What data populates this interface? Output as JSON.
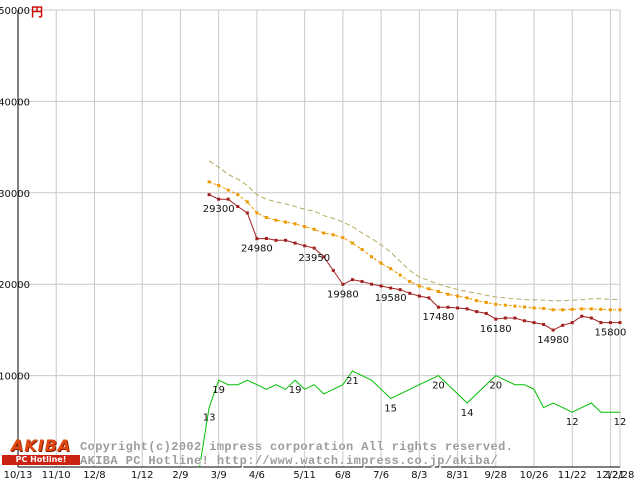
{
  "page": {
    "yen_unit": "円",
    "copyright_line1": "Copyright(c)2002 impress corporation All rights reserved.",
    "copyright_line2": "AKIBA PC Hotline! http://www.watch.impress.co.jp/akiba/",
    "logo": {
      "title": "AKIBA",
      "subtitle": "PC Hotline!"
    }
  },
  "chart_data": {
    "type": "line",
    "title": "",
    "y_unit": "円",
    "ylim": [
      0,
      50000
    ],
    "grid": true,
    "grid_color": "#c9c9c9",
    "axis_color": "#000000",
    "x_week_max": 63,
    "y_ticks": [
      {
        "label": "10000",
        "value": 10000
      },
      {
        "label": "20000",
        "value": 20000
      },
      {
        "label": "30000",
        "value": 30000
      },
      {
        "label": "40000",
        "value": 40000
      },
      {
        "label": "50000",
        "value": 50000
      }
    ],
    "x_ticks": [
      {
        "label": "10/13",
        "week": 0
      },
      {
        "label": "11/10",
        "week": 4
      },
      {
        "label": "12/8",
        "week": 8
      },
      {
        "label": "1/12",
        "week": 13
      },
      {
        "label": "2/9",
        "week": 17
      },
      {
        "label": "3/9",
        "week": 21
      },
      {
        "label": "4/6",
        "week": 25
      },
      {
        "label": "5/11",
        "week": 30
      },
      {
        "label": "6/8",
        "week": 34
      },
      {
        "label": "7/6",
        "week": 38
      },
      {
        "label": "8/3",
        "week": 42
      },
      {
        "label": "8/31",
        "week": 46
      },
      {
        "label": "9/28",
        "week": 50
      },
      {
        "label": "10/26",
        "week": 54
      },
      {
        "label": "11/22",
        "week": 58
      },
      {
        "label": "12/21",
        "week": 62
      },
      {
        "label": "12/28",
        "week": 63
      }
    ],
    "series": [
      {
        "name": "highest-price",
        "color": "#b5a85f",
        "width": 1,
        "dash": "5,3",
        "markers": false,
        "scale": 1,
        "start_week": 20,
        "values": [
          33500,
          32800,
          32000,
          31500,
          30800,
          29800,
          29300,
          29000,
          28800,
          28500,
          28200,
          28000,
          27500,
          27200,
          26800,
          26300,
          25600,
          25000,
          24300,
          23500,
          22500,
          21500,
          20800,
          20400,
          20000,
          19700,
          19400,
          19200,
          19000,
          18800,
          18600,
          18500,
          18400,
          18300,
          18300,
          18250,
          18200,
          18200,
          18250,
          18300,
          18400,
          18400,
          18350,
          18300
        ]
      },
      {
        "name": "average-price",
        "color": "#ee9900",
        "width": 1,
        "dash": "3,2",
        "markers": true,
        "scale": 1,
        "start_week": 20,
        "values": [
          31200,
          30800,
          30300,
          29800,
          29000,
          27800,
          27300,
          27000,
          26800,
          26600,
          26300,
          26000,
          25600,
          25400,
          25100,
          24500,
          23800,
          23000,
          22300,
          21700,
          21000,
          20300,
          19800,
          19500,
          19200,
          18900,
          18700,
          18500,
          18200,
          18000,
          17800,
          17700,
          17600,
          17500,
          17400,
          17350,
          17200,
          17200,
          17250,
          17300,
          17300,
          17250,
          17200,
          17200
        ]
      },
      {
        "name": "lowest-price",
        "color": "#a02020",
        "width": 1,
        "dash": "",
        "markers": true,
        "scale": 1,
        "start_week": 20,
        "values": [
          29800,
          29300,
          29300,
          28500,
          27800,
          24980,
          25000,
          24800,
          24800,
          24500,
          24200,
          23950,
          23000,
          21500,
          19980,
          20500,
          20300,
          20000,
          19800,
          19580,
          19400,
          19000,
          18700,
          18500,
          17480,
          17480,
          17400,
          17300,
          17000,
          16800,
          16180,
          16300,
          16300,
          16000,
          15800,
          15600,
          14980,
          15500,
          15800,
          16500,
          16300,
          15800,
          15800,
          15800
        ]
      },
      {
        "name": "shop-count",
        "color": "#00c000",
        "width": 1,
        "dash": "",
        "markers": false,
        "scale": 500,
        "start_week": 19,
        "values": [
          0,
          13,
          19,
          18,
          18,
          19,
          18,
          17,
          18,
          17,
          19,
          17,
          18,
          16,
          17,
          18,
          21,
          20,
          19,
          17,
          15,
          16,
          17,
          18,
          19,
          20,
          18,
          16,
          14,
          16,
          18,
          20,
          19,
          18,
          18,
          17,
          13,
          14,
          13,
          12,
          13,
          14,
          12,
          12,
          12
        ]
      }
    ],
    "price_labels": [
      {
        "week": 21,
        "value": 29300,
        "label": "29300"
      },
      {
        "week": 25,
        "value": 24980,
        "label": "24980"
      },
      {
        "week": 31,
        "value": 23950,
        "label": "23950"
      },
      {
        "week": 34,
        "value": 19980,
        "label": "19980"
      },
      {
        "week": 39,
        "value": 19580,
        "label": "19580"
      },
      {
        "week": 44,
        "value": 17480,
        "label": "17480"
      },
      {
        "week": 50,
        "value": 16180,
        "label": "16180"
      },
      {
        "week": 56,
        "value": 14980,
        "label": "14980"
      },
      {
        "week": 62,
        "value": 15800,
        "label": "15800"
      }
    ],
    "count_labels": [
      {
        "week": 20,
        "value": 13,
        "label": "13"
      },
      {
        "week": 21,
        "value": 19,
        "label": "19"
      },
      {
        "week": 29,
        "value": 19,
        "label": "19"
      },
      {
        "week": 35,
        "value": 21,
        "label": "21"
      },
      {
        "week": 39,
        "value": 15,
        "label": "15"
      },
      {
        "week": 44,
        "value": 20,
        "label": "20"
      },
      {
        "week": 47,
        "value": 14,
        "label": "14"
      },
      {
        "week": 50,
        "value": 20,
        "label": "20"
      },
      {
        "week": 58,
        "value": 12,
        "label": "12"
      },
      {
        "week": 63,
        "value": 12,
        "label": "12"
      }
    ],
    "label_colors": {
      "price": "#9a1f1f",
      "count": "#222222"
    }
  }
}
